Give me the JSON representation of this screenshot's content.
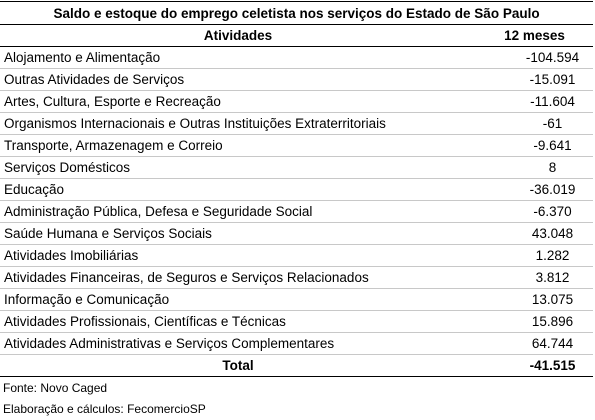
{
  "title": "Saldo e estoque  do emprego celetista nos serviços do Estado de São Paulo",
  "header": {
    "activity": "Atividades",
    "value": "12 meses"
  },
  "rows": [
    {
      "label": "Alojamento e Alimentação",
      "value": "-104.594"
    },
    {
      "label": "Outras Atividades de Serviços",
      "value": "-15.091"
    },
    {
      "label": "Artes, Cultura, Esporte e Recreação",
      "value": "-11.604"
    },
    {
      "label": "Organismos Internacionais e Outras Instituições Extraterritoriais",
      "value": "-61"
    },
    {
      "label": "Transporte, Armazenagem e Correio",
      "value": "-9.641"
    },
    {
      "label": "Serviços Domésticos",
      "value": "8"
    },
    {
      "label": "Educação",
      "value": "-36.019"
    },
    {
      "label": "Administração Pública, Defesa e Seguridade Social",
      "value": "-6.370"
    },
    {
      "label": "Saúde Humana e Serviços Sociais",
      "value": "43.048"
    },
    {
      "label": "Atividades Imobiliárias",
      "value": "1.282"
    },
    {
      "label": "Atividades Financeiras, de Seguros e Serviços Relacionados",
      "value": "3.812"
    },
    {
      "label": "Informação e Comunicação",
      "value": "13.075"
    },
    {
      "label": "Atividades Profissionais, Científicas e Técnicas",
      "value": "15.896"
    },
    {
      "label": "Atividades Administrativas e Serviços Complementares",
      "value": "64.744"
    }
  ],
  "total": {
    "label": "Total",
    "value": "-41.515"
  },
  "notes": {
    "source": "Fonte: Novo Caged",
    "elaboration": "Elaboração e cálculos: FecomercioSP"
  }
}
